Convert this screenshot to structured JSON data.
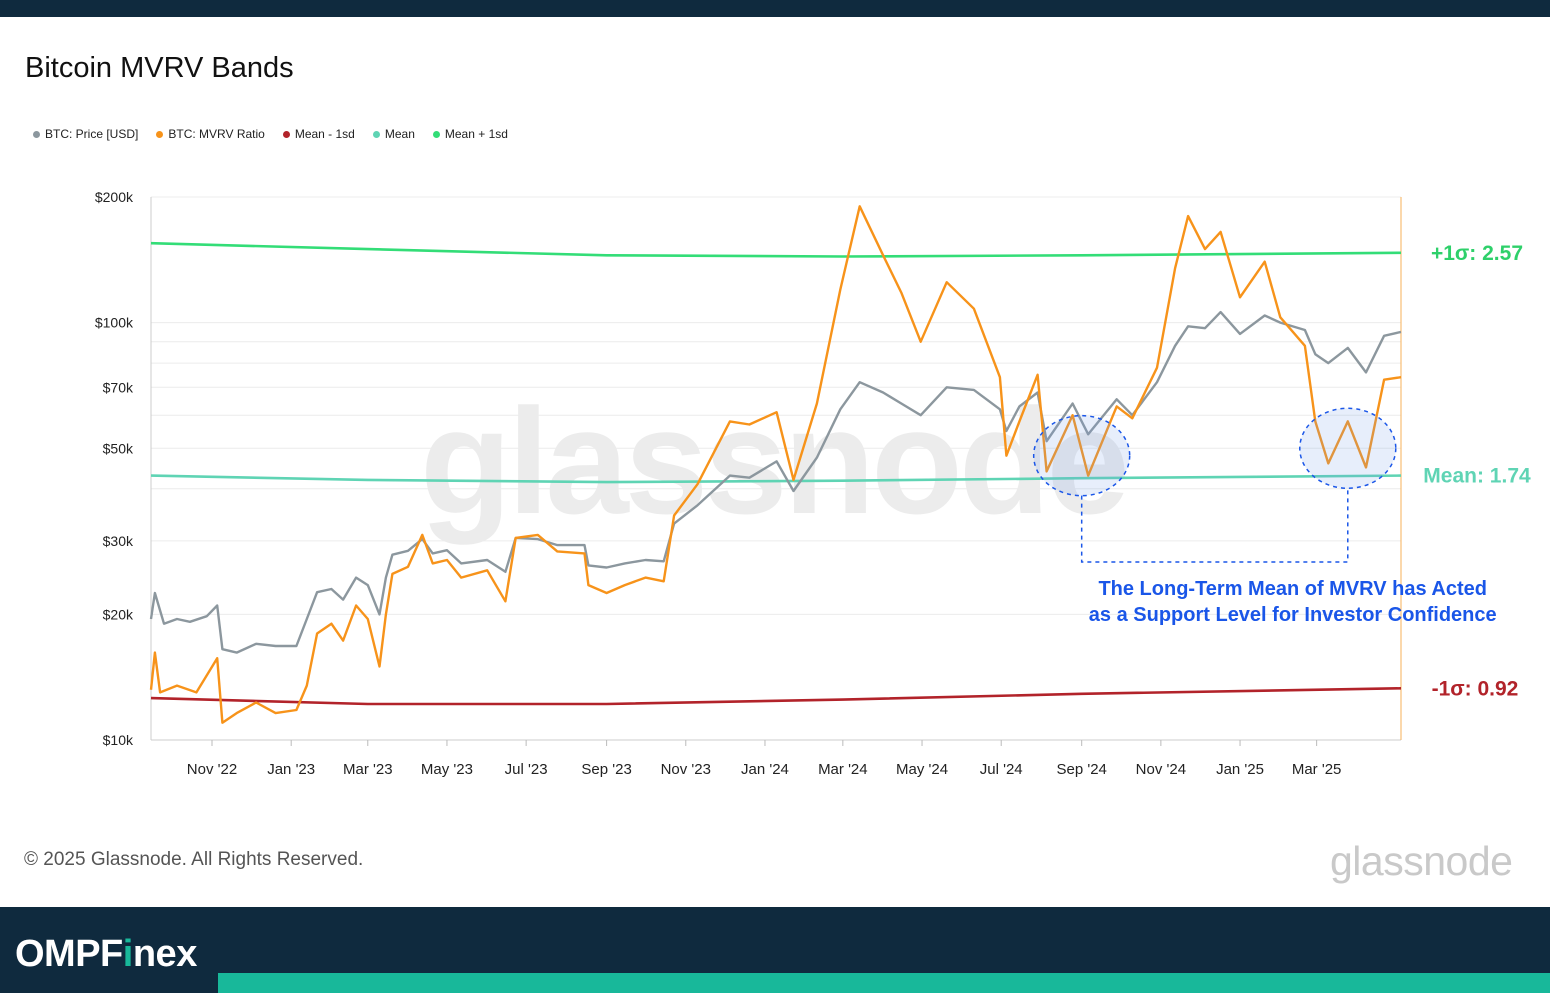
{
  "title": "Bitcoin MVRV Bands",
  "legend": [
    {
      "label": "BTC: Price [USD]",
      "color": "#8c979e"
    },
    {
      "label": "BTC: MVRV Ratio",
      "color": "#f7931a"
    },
    {
      "label": "Mean - 1sd",
      "color": "#b2232a"
    },
    {
      "label": "Mean",
      "color": "#5fd4b4"
    },
    {
      "label": "Mean + 1sd",
      "color": "#33dd77"
    }
  ],
  "chart_data": {
    "type": "line",
    "title": "Bitcoin MVRV Bands",
    "y_scale": "log",
    "ylim": [
      10000,
      200000
    ],
    "y_ticks": [
      {
        "value": 200000,
        "label": "$200k"
      },
      {
        "value": 100000,
        "label": "$100k"
      },
      {
        "value": 70000,
        "label": "$70k"
      },
      {
        "value": 50000,
        "label": "$50k"
      },
      {
        "value": 30000,
        "label": "$30k"
      },
      {
        "value": 20000,
        "label": "$20k"
      },
      {
        "value": 10000,
        "label": "$10k"
      }
    ],
    "x_range": [
      "2022-09-15",
      "2025-05-05"
    ],
    "x_ticks": [
      {
        "date": "2022-11-01",
        "label": "Nov '22"
      },
      {
        "date": "2023-01-01",
        "label": "Jan '23"
      },
      {
        "date": "2023-03-01",
        "label": "Mar '23"
      },
      {
        "date": "2023-05-01",
        "label": "May '23"
      },
      {
        "date": "2023-07-01",
        "label": "Jul '23"
      },
      {
        "date": "2023-09-01",
        "label": "Sep '23"
      },
      {
        "date": "2023-11-01",
        "label": "Nov '23"
      },
      {
        "date": "2024-01-01",
        "label": "Jan '24"
      },
      {
        "date": "2024-03-01",
        "label": "Mar '24"
      },
      {
        "date": "2024-05-01",
        "label": "May '24"
      },
      {
        "date": "2024-07-01",
        "label": "Jul '24"
      },
      {
        "date": "2024-09-01",
        "label": "Sep '24"
      },
      {
        "date": "2024-11-01",
        "label": "Nov '24"
      },
      {
        "date": "2025-01-01",
        "label": "Jan '25"
      },
      {
        "date": "2025-03-01",
        "label": "Mar '25"
      }
    ],
    "series": [
      {
        "name": "BTC: Price [USD]",
        "color": "#8c979e",
        "points": [
          [
            "2022-09-15",
            19500
          ],
          [
            "2022-09-18",
            22500
          ],
          [
            "2022-09-25",
            19000
          ],
          [
            "2022-10-05",
            19500
          ],
          [
            "2022-10-15",
            19200
          ],
          [
            "2022-10-28",
            19800
          ],
          [
            "2022-11-05",
            21000
          ],
          [
            "2022-11-09",
            16500
          ],
          [
            "2022-11-20",
            16200
          ],
          [
            "2022-12-05",
            17000
          ],
          [
            "2022-12-20",
            16800
          ],
          [
            "2023-01-05",
            16800
          ],
          [
            "2023-01-13",
            19500
          ],
          [
            "2023-01-21",
            22600
          ],
          [
            "2023-02-01",
            23000
          ],
          [
            "2023-02-10",
            21700
          ],
          [
            "2023-02-20",
            24500
          ],
          [
            "2023-03-01",
            23500
          ],
          [
            "2023-03-10",
            20000
          ],
          [
            "2023-03-15",
            24500
          ],
          [
            "2023-03-20",
            27800
          ],
          [
            "2023-04-01",
            28400
          ],
          [
            "2023-04-12",
            30300
          ],
          [
            "2023-04-20",
            28000
          ],
          [
            "2023-05-01",
            28500
          ],
          [
            "2023-05-12",
            26500
          ],
          [
            "2023-06-01",
            27000
          ],
          [
            "2023-06-15",
            25300
          ],
          [
            "2023-06-23",
            30500
          ],
          [
            "2023-07-10",
            30300
          ],
          [
            "2023-07-25",
            29300
          ],
          [
            "2023-08-15",
            29300
          ],
          [
            "2023-08-18",
            26200
          ],
          [
            "2023-09-01",
            25900
          ],
          [
            "2023-09-15",
            26500
          ],
          [
            "2023-10-01",
            27000
          ],
          [
            "2023-10-15",
            26800
          ],
          [
            "2023-10-23",
            33000
          ],
          [
            "2023-11-10",
            36500
          ],
          [
            "2023-12-05",
            43000
          ],
          [
            "2023-12-20",
            42500
          ],
          [
            "2024-01-10",
            46500
          ],
          [
            "2024-01-23",
            39500
          ],
          [
            "2024-02-10",
            47500
          ],
          [
            "2024-02-28",
            62000
          ],
          [
            "2024-03-14",
            72000
          ],
          [
            "2024-04-01",
            68000
          ],
          [
            "2024-04-15",
            64000
          ],
          [
            "2024-04-30",
            60000
          ],
          [
            "2024-05-20",
            70000
          ],
          [
            "2024-06-10",
            69000
          ],
          [
            "2024-06-30",
            62000
          ],
          [
            "2024-07-05",
            55000
          ],
          [
            "2024-07-15",
            63000
          ],
          [
            "2024-07-29",
            68000
          ],
          [
            "2024-08-05",
            52000
          ],
          [
            "2024-08-25",
            64000
          ],
          [
            "2024-09-06",
            54000
          ],
          [
            "2024-09-28",
            65500
          ],
          [
            "2024-10-10",
            60000
          ],
          [
            "2024-10-29",
            72000
          ],
          [
            "2024-11-12",
            88000
          ],
          [
            "2024-11-22",
            98000
          ],
          [
            "2024-12-05",
            97000
          ],
          [
            "2024-12-17",
            106000
          ],
          [
            "2025-01-01",
            94000
          ],
          [
            "2025-01-20",
            104000
          ],
          [
            "2025-02-01",
            100000
          ],
          [
            "2025-02-20",
            96000
          ],
          [
            "2025-02-28",
            84000
          ],
          [
            "2025-03-10",
            80000
          ],
          [
            "2025-03-25",
            87000
          ],
          [
            "2025-04-08",
            76000
          ],
          [
            "2025-04-22",
            93000
          ],
          [
            "2025-05-05",
            95000
          ]
        ]
      },
      {
        "name": "BTC: MVRV Ratio",
        "color": "#f7931a",
        "points": [
          [
            "2022-09-15",
            13200
          ],
          [
            "2022-09-18",
            16200
          ],
          [
            "2022-09-22",
            13000
          ],
          [
            "2022-10-05",
            13500
          ],
          [
            "2022-10-20",
            13000
          ],
          [
            "2022-11-05",
            15700
          ],
          [
            "2022-11-09",
            11000
          ],
          [
            "2022-11-20",
            11600
          ],
          [
            "2022-12-05",
            12300
          ],
          [
            "2022-12-20",
            11600
          ],
          [
            "2023-01-05",
            11800
          ],
          [
            "2023-01-13",
            13500
          ],
          [
            "2023-01-21",
            18000
          ],
          [
            "2023-02-01",
            19000
          ],
          [
            "2023-02-10",
            17300
          ],
          [
            "2023-02-20",
            21000
          ],
          [
            "2023-03-01",
            19500
          ],
          [
            "2023-03-10",
            15000
          ],
          [
            "2023-03-15",
            20000
          ],
          [
            "2023-03-20",
            25000
          ],
          [
            "2023-04-01",
            26000
          ],
          [
            "2023-04-12",
            31000
          ],
          [
            "2023-04-20",
            26500
          ],
          [
            "2023-05-01",
            27000
          ],
          [
            "2023-05-12",
            24500
          ],
          [
            "2023-06-01",
            25500
          ],
          [
            "2023-06-15",
            21500
          ],
          [
            "2023-06-23",
            30500
          ],
          [
            "2023-07-10",
            31000
          ],
          [
            "2023-07-25",
            28300
          ],
          [
            "2023-08-15",
            28000
          ],
          [
            "2023-08-18",
            23500
          ],
          [
            "2023-09-01",
            22500
          ],
          [
            "2023-09-15",
            23500
          ],
          [
            "2023-10-01",
            24500
          ],
          [
            "2023-10-15",
            24000
          ],
          [
            "2023-10-23",
            34500
          ],
          [
            "2023-11-10",
            41000
          ],
          [
            "2023-12-05",
            58000
          ],
          [
            "2023-12-20",
            57000
          ],
          [
            "2024-01-10",
            61000
          ],
          [
            "2024-01-23",
            42000
          ],
          [
            "2024-02-10",
            64000
          ],
          [
            "2024-02-28",
            120000
          ],
          [
            "2024-03-14",
            190000
          ],
          [
            "2024-04-01",
            145000
          ],
          [
            "2024-04-15",
            118000
          ],
          [
            "2024-04-30",
            90000
          ],
          [
            "2024-05-20",
            125000
          ],
          [
            "2024-06-10",
            108000
          ],
          [
            "2024-06-30",
            74000
          ],
          [
            "2024-07-05",
            48000
          ],
          [
            "2024-07-15",
            58000
          ],
          [
            "2024-07-29",
            75000
          ],
          [
            "2024-08-05",
            44000
          ],
          [
            "2024-08-25",
            60000
          ],
          [
            "2024-09-06",
            43000
          ],
          [
            "2024-09-28",
            63000
          ],
          [
            "2024-10-10",
            59000
          ],
          [
            "2024-10-29",
            78000
          ],
          [
            "2024-11-12",
            135000
          ],
          [
            "2024-11-22",
            180000
          ],
          [
            "2024-12-05",
            150000
          ],
          [
            "2024-12-17",
            165000
          ],
          [
            "2025-01-01",
            115000
          ],
          [
            "2025-01-20",
            140000
          ],
          [
            "2025-02-01",
            103000
          ],
          [
            "2025-02-20",
            88000
          ],
          [
            "2025-02-28",
            58000
          ],
          [
            "2025-03-10",
            46000
          ],
          [
            "2025-03-25",
            58000
          ],
          [
            "2025-04-08",
            45000
          ],
          [
            "2025-04-22",
            73000
          ],
          [
            "2025-05-05",
            74000
          ]
        ]
      },
      {
        "name": "Mean - 1sd",
        "color": "#b2232a",
        "points": [
          [
            "2022-09-15",
            12600
          ],
          [
            "2023-03-01",
            12200
          ],
          [
            "2023-09-01",
            12200
          ],
          [
            "2024-03-01",
            12500
          ],
          [
            "2024-09-01",
            12900
          ],
          [
            "2025-05-05",
            13300
          ]
        ]
      },
      {
        "name": "Mean",
        "color": "#5fd4b4",
        "points": [
          [
            "2022-09-15",
            43000
          ],
          [
            "2023-03-01",
            42000
          ],
          [
            "2023-09-01",
            41500
          ],
          [
            "2024-03-01",
            41800
          ],
          [
            "2024-09-01",
            42400
          ],
          [
            "2025-05-05",
            43000
          ]
        ]
      },
      {
        "name": "Mean + 1sd",
        "color": "#33dd77",
        "points": [
          [
            "2022-09-15",
            155000
          ],
          [
            "2023-03-01",
            150000
          ],
          [
            "2023-09-01",
            145000
          ],
          [
            "2024-03-01",
            144000
          ],
          [
            "2024-09-01",
            145000
          ],
          [
            "2025-05-05",
            147000
          ]
        ]
      }
    ],
    "band_labels": [
      {
        "text": "+1σ: 2.57",
        "color": "#2ed06a"
      },
      {
        "text": "Mean: 1.74",
        "color": "#5fd4b4"
      },
      {
        "text": "-1σ: 0.92",
        "color": "#b2232a"
      }
    ],
    "annotation": {
      "line1": "The Long-Term Mean of MVRV has Acted",
      "line2": "as a Support Level for Investor Confidence",
      "color": "#1a56e8"
    }
  },
  "watermark": "glassnode",
  "footer": {
    "copyright": "© 2025 Glassnode. All Rights Reserved.",
    "logo": "glassnode"
  },
  "brand": {
    "part1": "OMPF",
    "part2": "i",
    "part3": "nex",
    "accent_color": "#18b89a"
  }
}
